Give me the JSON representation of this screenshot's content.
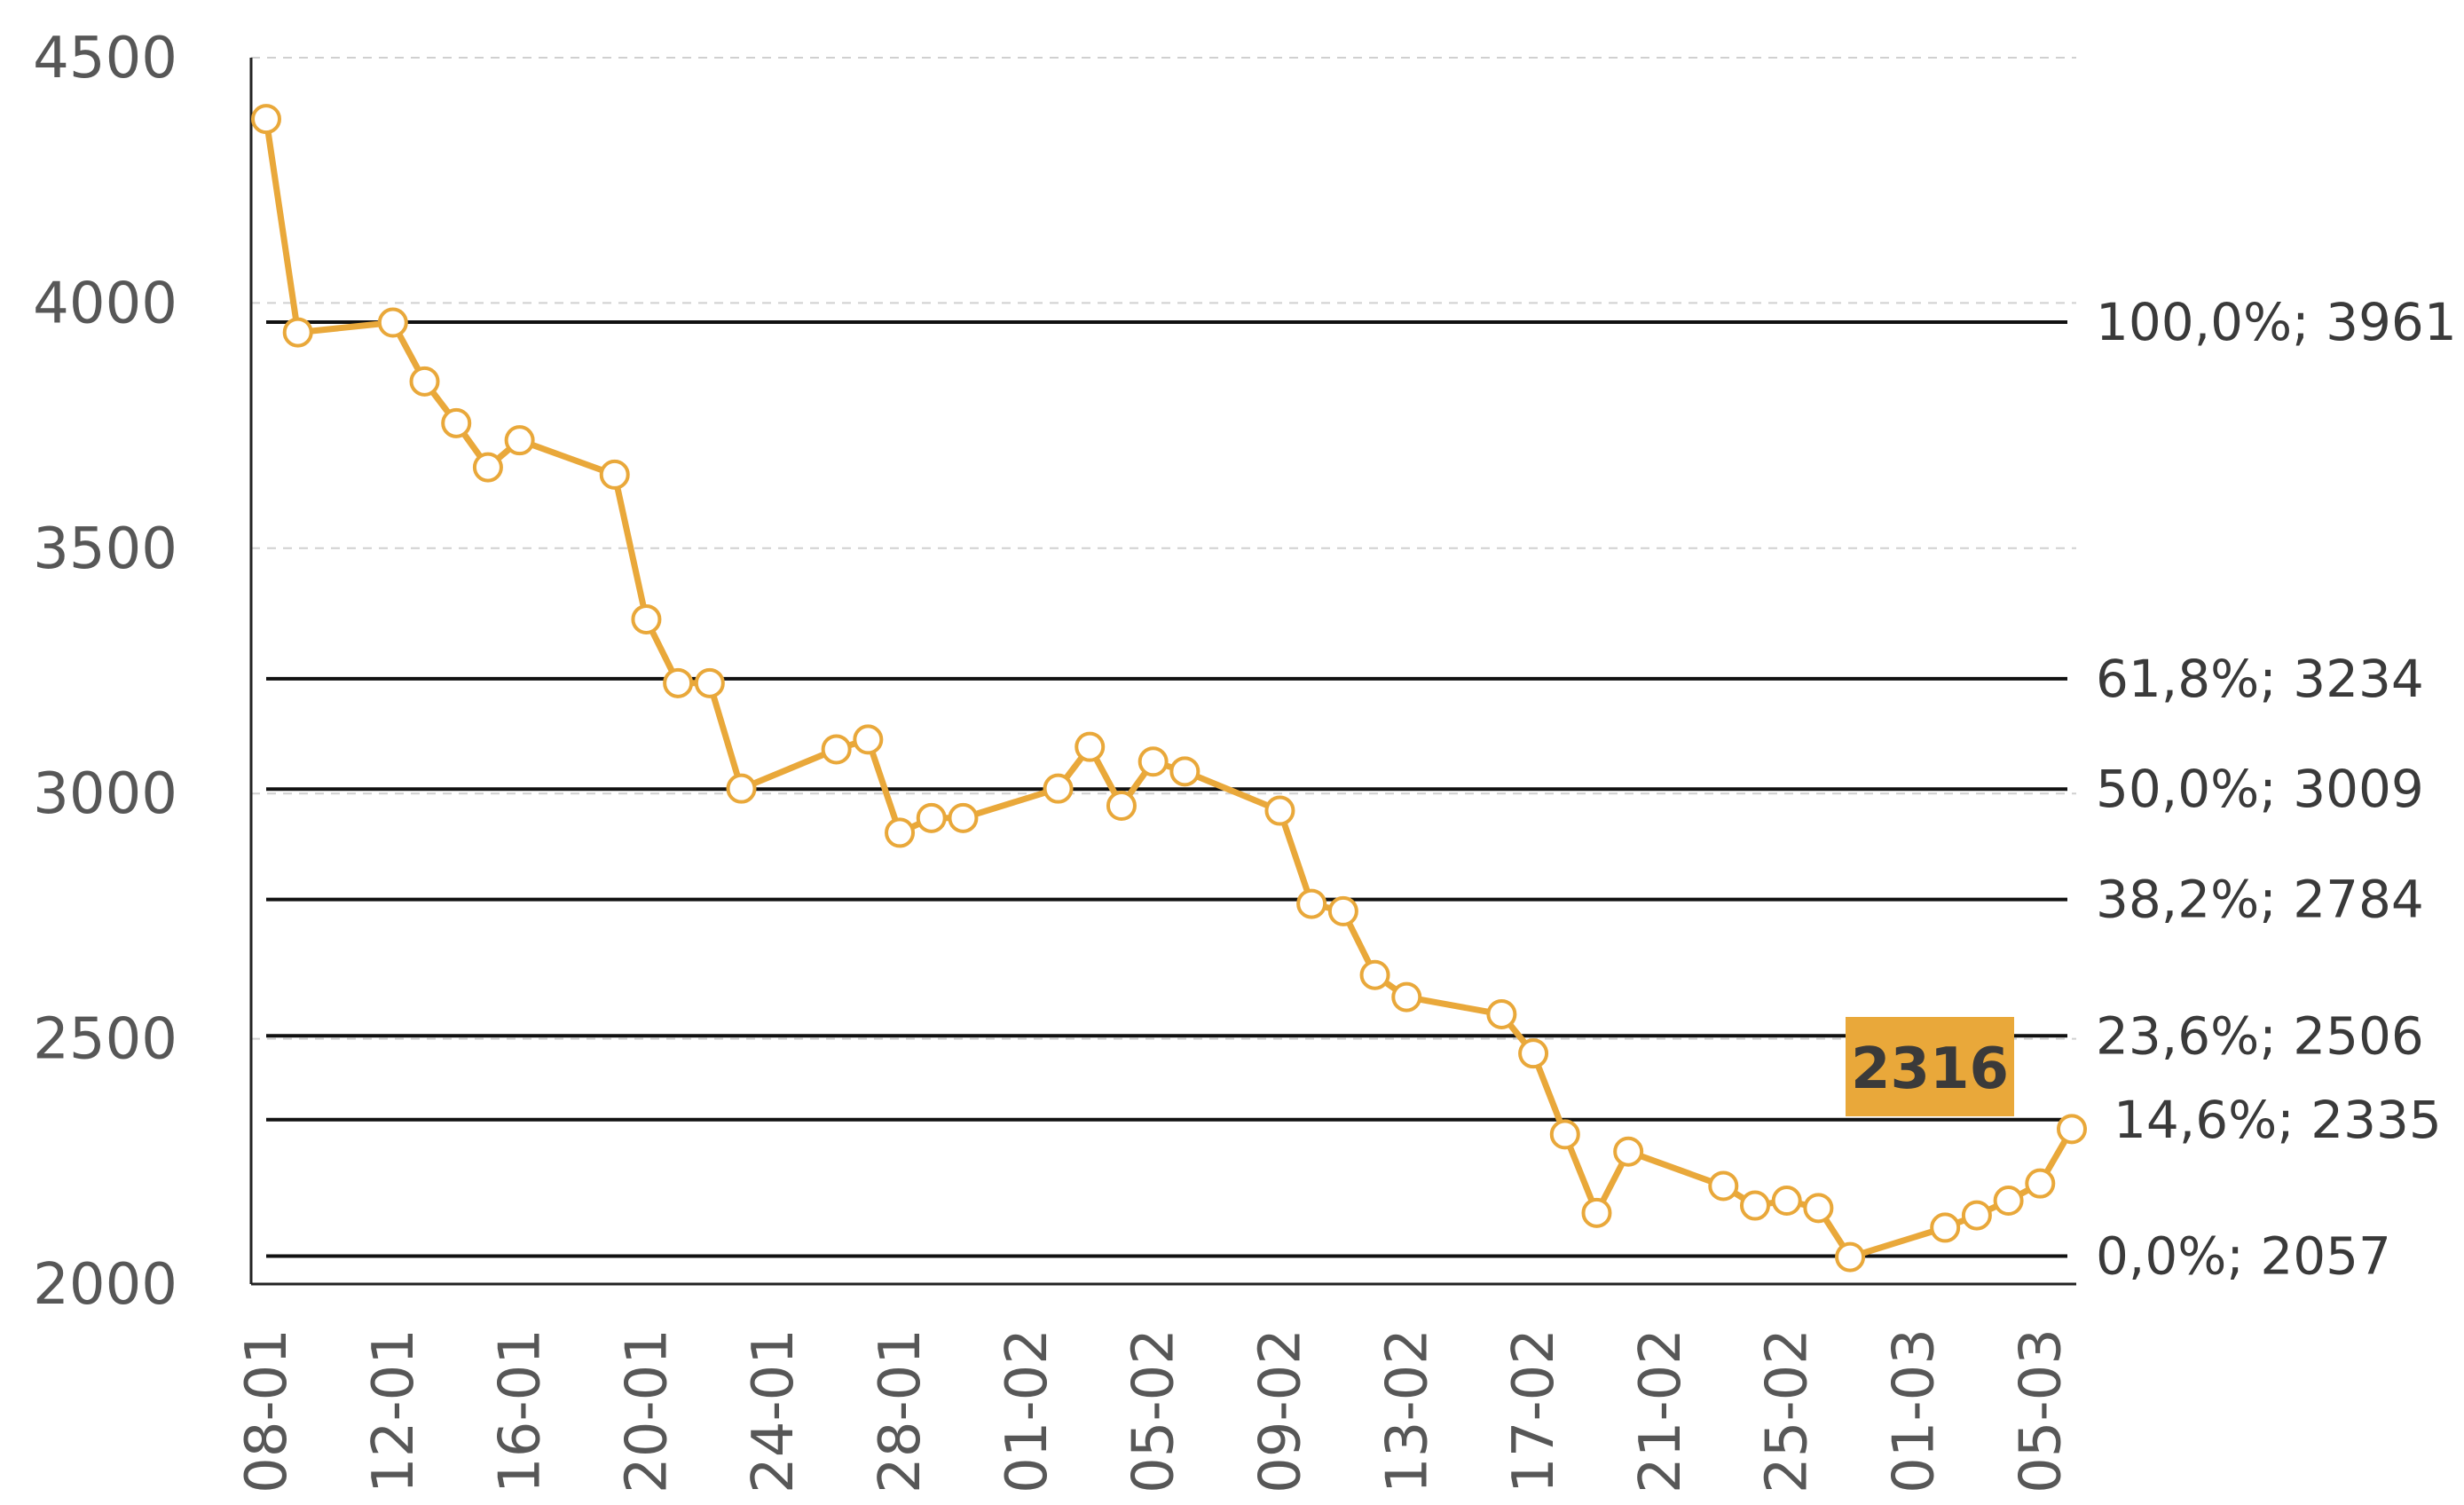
{
  "chart_data": {
    "type": "line",
    "title": "",
    "xlabel": "",
    "ylabel": "",
    "ylim": [
      2000,
      4500
    ],
    "yticks": [
      2000,
      2500,
      3000,
      3500,
      4000,
      4500
    ],
    "grid": true,
    "legend": "none",
    "x_tick_labels": [
      "08-01",
      "12-01",
      "16-01",
      "20-01",
      "24-01",
      "28-01",
      "01-02",
      "05-02",
      "09-02",
      "13-02",
      "17-02",
      "21-02",
      "25-02",
      "01-03",
      "05-03"
    ],
    "colors": {
      "line": "#E9A83A",
      "marker_fill": "#ffffff",
      "levels": "#111111",
      "axis": "#222222",
      "grid": "#d0d0d0",
      "callout_bg": "#E9A83A",
      "callout_text": "#3a3a3a"
    },
    "series": [
      {
        "x": [
          "08-01",
          "09-01",
          "12-01",
          "13-01",
          "14-01",
          "15-01",
          "16-01",
          "19-01",
          "20-01",
          "21-01",
          "22-01",
          "23-01",
          "26-01",
          "27-01",
          "28-01",
          "29-01",
          "30-01",
          "02-02",
          "03-02",
          "04-02",
          "05-02",
          "06-02",
          "09-02",
          "10-02",
          "11-02",
          "12-02",
          "13-02",
          "16-02",
          "17-02",
          "18-02",
          "19-02",
          "20-02",
          "23-02",
          "24-02",
          "25-02",
          "26-02",
          "27-02",
          "02-03",
          "03-03",
          "04-03",
          "05-03",
          "06-03"
        ],
        "values": [
          4375,
          3940,
          3960,
          3840,
          3755,
          3665,
          3720,
          3650,
          3355,
          3225,
          3225,
          3010,
          3090,
          3110,
          2920,
          2950,
          2950,
          3010,
          3095,
          2975,
          3065,
          3045,
          2965,
          2775,
          2760,
          2630,
          2585,
          2550,
          2470,
          2305,
          2145,
          2270,
          2200,
          2160,
          2170,
          2155,
          2055,
          2115,
          2140,
          2170,
          2205,
          2316
        ]
      }
    ],
    "levels": [
      {
        "value": 3961,
        "label": "100,0%; 3961"
      },
      {
        "value": 3234,
        "label": "61,8%; 3234"
      },
      {
        "value": 3009,
        "label": "50,0%; 3009"
      },
      {
        "value": 2784,
        "label": "38,2%; 2784"
      },
      {
        "value": 2506,
        "label": "23,6%; 2506"
      },
      {
        "value": 2335,
        "label": "14,6%; 2335"
      },
      {
        "value": 2057,
        "label": "0,0%; 2057"
      }
    ],
    "callout": {
      "text": "2316",
      "value": 2316
    }
  }
}
